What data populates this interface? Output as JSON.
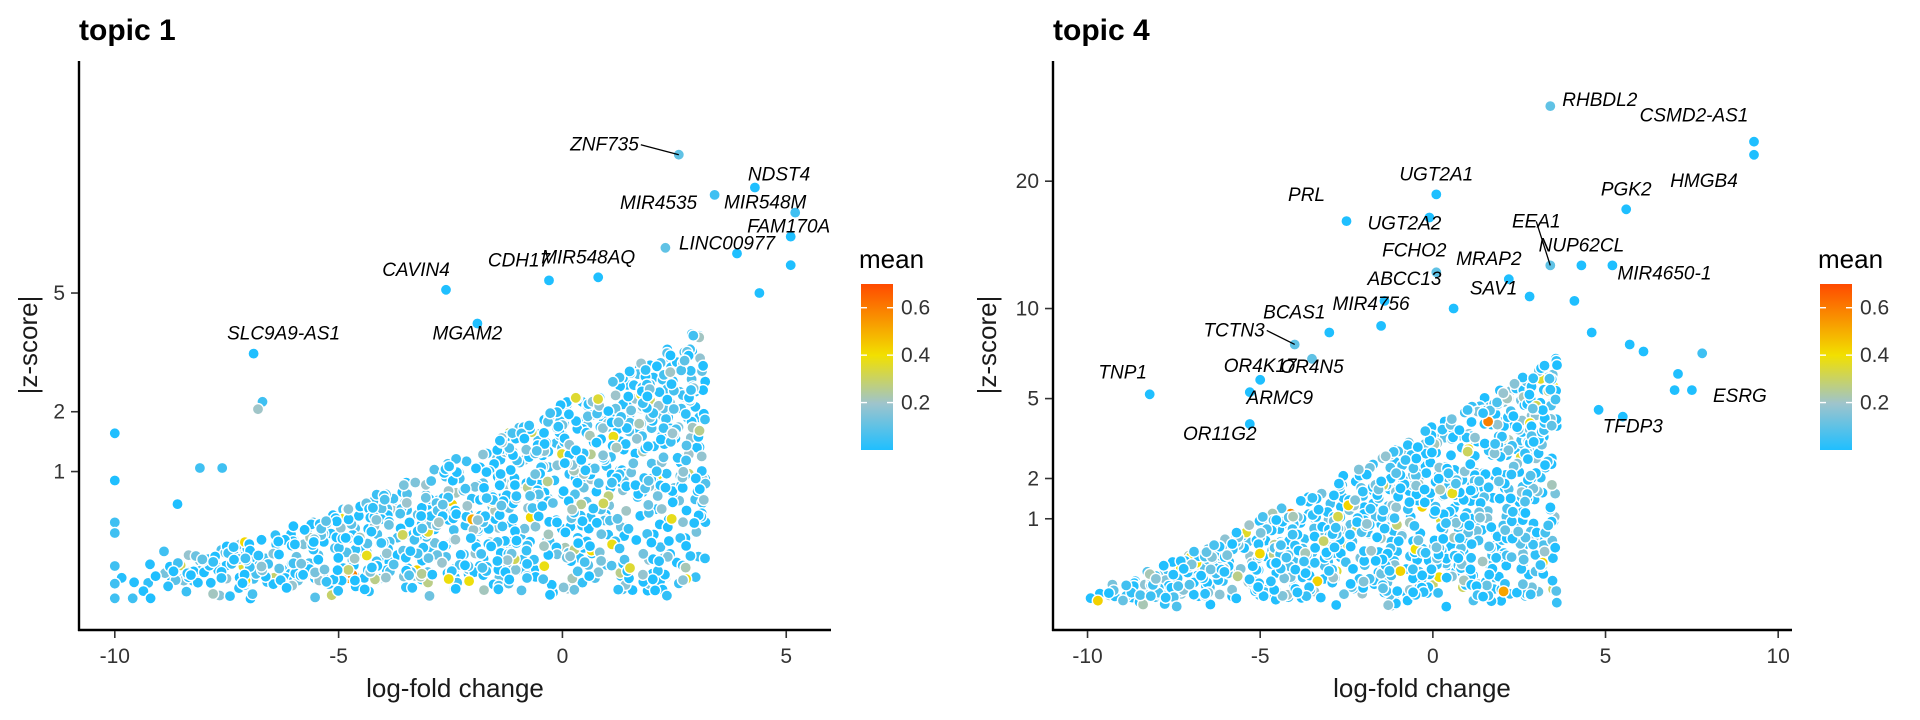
{
  "figure": {
    "colors": {
      "low": "#1fbfff",
      "mid1": "#9ec4cc",
      "mid2": "#f2e000",
      "high": "#ff4a00"
    }
  },
  "chart_data": [
    {
      "type": "scatter",
      "title": "topic 1",
      "xlabel": "log-fold change",
      "ylabel": "|z-score|",
      "y_scale": "sqrt",
      "xlim": [
        -10.8,
        6.0
      ],
      "ylim": [
        0,
        14.5
      ],
      "xticks": [
        -10,
        -5,
        0,
        5
      ],
      "xtick_labels": [
        "-10",
        "-5",
        "0",
        "5"
      ],
      "yticks": [
        1,
        2,
        5
      ],
      "ytick_labels": [
        "1",
        "2",
        "5"
      ],
      "legend": {
        "title": "mean",
        "ticks": [
          0.2,
          0.4,
          0.6
        ],
        "tick_labels": [
          "0.2",
          "0.4",
          "0.6"
        ],
        "range": [
          0,
          0.7
        ],
        "placement": "right"
      },
      "cloud": {
        "n": 1150,
        "seed": 11,
        "x_min": -10,
        "x_max": 3.2,
        "floor": 0.06,
        "slope_lo": 0.03,
        "slope_hi": 0.12,
        "hi_exp": 2.6,
        "mean_mode": "low"
      },
      "labeled_genes": [
        {
          "label": "ZNF735",
          "x": 2.6,
          "y": 10.2,
          "mean": 0.1
        },
        {
          "label": "NDST4",
          "x": 4.3,
          "y": 8.8,
          "mean": 0.0
        },
        {
          "label": "MIR4535",
          "x": 3.4,
          "y": 8.5,
          "mean": 0.05
        },
        {
          "label": "MIR548M",
          "x": 5.2,
          "y": 7.8,
          "mean": 0.05
        },
        {
          "label": "LINC00977",
          "x": 3.9,
          "y": 6.3,
          "mean": 0.0
        },
        {
          "label": "FAM170A",
          "x": 5.1,
          "y": 6.9,
          "mean": 0.0
        },
        {
          "label": "MIR548AQ",
          "x": 0.8,
          "y": 5.5,
          "mean": 0.0
        },
        {
          "label": "CDH17",
          "x": -0.3,
          "y": 5.4,
          "mean": 0.0
        },
        {
          "label": "CAVIN4",
          "x": -2.6,
          "y": 5.1,
          "mean": 0.0
        },
        {
          "label": "MGAM2",
          "x": -1.9,
          "y": 4.1,
          "mean": 0.0
        },
        {
          "label": "SLC9A9-AS1",
          "x": -6.9,
          "y": 3.3,
          "mean": 0.0
        }
      ],
      "extra_points": [
        {
          "x": -10,
          "y": 1.6,
          "mean": 0.0
        },
        {
          "x": -10,
          "y": 0.88,
          "mean": 0.0
        },
        {
          "x": -10,
          "y": 0.42,
          "mean": 0.05
        },
        {
          "x": -10,
          "y": 0.33,
          "mean": 0.05
        },
        {
          "x": -10,
          "y": 0.12,
          "mean": 0.05
        },
        {
          "x": -10,
          "y": 0.05,
          "mean": 0.05
        },
        {
          "x": -10,
          "y": 0.015,
          "mean": 0.05
        },
        {
          "x": -9.6,
          "y": 0.015,
          "mean": 0.05
        },
        {
          "x": -9.2,
          "y": 0.015,
          "mean": 0.0
        },
        {
          "x": -6.7,
          "y": 2.2,
          "mean": 0.05
        },
        {
          "x": -6.8,
          "y": 2.05,
          "mean": 0.2
        },
        {
          "x": -8.1,
          "y": 1.05,
          "mean": 0.05
        },
        {
          "x": -7.6,
          "y": 1.05,
          "mean": 0.05
        },
        {
          "x": -8.6,
          "y": 0.6,
          "mean": 0.0
        },
        {
          "x": -8.9,
          "y": 0.2,
          "mean": 0.05
        },
        {
          "x": -8.3,
          "y": 0.08,
          "mean": 0.0
        },
        {
          "x": 5.1,
          "y": 5.9,
          "mean": 0.0
        },
        {
          "x": 4.4,
          "y": 5.0,
          "mean": 0.0
        },
        {
          "x": 2.3,
          "y": 6.5,
          "mean": 0.1
        }
      ]
    },
    {
      "type": "scatter",
      "title": "topic 4",
      "xlabel": "log-fold change",
      "ylabel": "|z-score|",
      "y_scale": "sqrt",
      "xlim": [
        -11.0,
        10.4
      ],
      "ylim": [
        0,
        32
      ],
      "xticks": [
        -10,
        -5,
        0,
        5,
        10
      ],
      "xtick_labels": [
        "-10",
        "-5",
        "0",
        "5",
        "10"
      ],
      "yticks": [
        1,
        2,
        5,
        10,
        20
      ],
      "ytick_labels": [
        "1",
        "2",
        "5",
        "10",
        "20"
      ],
      "legend": {
        "title": "mean",
        "ticks": [
          0.2,
          0.4,
          0.6
        ],
        "tick_labels": [
          "0.2",
          "0.4",
          "0.6"
        ],
        "range": [
          0,
          0.7
        ],
        "placement": "right"
      },
      "cloud": {
        "n": 1050,
        "seed": 23,
        "x_min": -10,
        "x_max": 3.6,
        "floor": 0.04,
        "slope_lo": 0.04,
        "slope_hi": 0.22,
        "hi_exp": 2.2,
        "mean_mode": "low"
      },
      "labeled_genes": [
        {
          "label": "RHBDL2",
          "x": 3.4,
          "y": 27.5,
          "mean": 0.1
        },
        {
          "label": "CSMD2-AS1",
          "x": 9.3,
          "y": 23.8,
          "mean": 0.0
        },
        {
          "label": "HMGB4",
          "x": 9.3,
          "y": 22.5,
          "mean": 0.0
        },
        {
          "label": "UGT2A1",
          "x": 0.1,
          "y": 18.8,
          "mean": 0.0
        },
        {
          "label": "PGK2",
          "x": 5.6,
          "y": 17.5,
          "mean": 0.0
        },
        {
          "label": "PRL",
          "x": -2.5,
          "y": 16.5,
          "mean": 0.0
        },
        {
          "label": "UGT2A2",
          "x": -0.1,
          "y": 16.8,
          "mean": 0.0
        },
        {
          "label": "EEA1",
          "x": 3.4,
          "y": 13.0,
          "mean": 0.1
        },
        {
          "label": "NUP62CL",
          "x": 4.3,
          "y": 13.0,
          "mean": 0.0
        },
        {
          "label": "FCHO2",
          "x": 0.1,
          "y": 12.5,
          "mean": 0.1
        },
        {
          "label": "MRAP2",
          "x": 2.2,
          "y": 12.0,
          "mean": 0.0
        },
        {
          "label": "MIR4650-1",
          "x": 5.2,
          "y": 13.0,
          "mean": 0.0
        },
        {
          "label": "ABCC13",
          "x": -1.4,
          "y": 10.5,
          "mean": 0.0
        },
        {
          "label": "SAV1",
          "x": 0.6,
          "y": 10.0,
          "mean": 0.0
        },
        {
          "label": "BCAS1",
          "x": -3.0,
          "y": 8.5,
          "mean": 0.0
        },
        {
          "label": "TCTN3",
          "x": -4.0,
          "y": 7.8,
          "mean": 0.1
        },
        {
          "label": "MIR4756",
          "x": -1.5,
          "y": 8.9,
          "mean": 0.0
        },
        {
          "label": "OR4N5",
          "x": -3.5,
          "y": 7.0,
          "mean": 0.1
        },
        {
          "label": "OR4K17",
          "x": -5.0,
          "y": 5.9,
          "mean": 0.0
        },
        {
          "label": "TNP1",
          "x": -8.2,
          "y": 5.2,
          "mean": 0.0
        },
        {
          "label": "ARMC9",
          "x": -5.3,
          "y": 5.3,
          "mean": 0.0
        },
        {
          "label": "OR11G2",
          "x": -5.3,
          "y": 3.9,
          "mean": 0.0
        },
        {
          "label": "ESRG",
          "x": 7.5,
          "y": 5.4,
          "mean": 0.0
        },
        {
          "label": "TFDP3",
          "x": 5.5,
          "y": 4.2,
          "mean": 0.0
        }
      ],
      "extra_points": [
        {
          "x": 7.8,
          "y": 7.3,
          "mean": 0.05
        },
        {
          "x": 7.1,
          "y": 6.2,
          "mean": 0.0
        },
        {
          "x": 7.0,
          "y": 5.4,
          "mean": 0.0
        },
        {
          "x": 5.7,
          "y": 7.8,
          "mean": 0.0
        },
        {
          "x": 6.1,
          "y": 7.4,
          "mean": 0.0
        },
        {
          "x": 4.6,
          "y": 8.5,
          "mean": 0.0
        },
        {
          "x": 4.8,
          "y": 4.5,
          "mean": 0.0
        },
        {
          "x": 4.1,
          "y": 10.5,
          "mean": 0.0
        },
        {
          "x": 2.8,
          "y": 10.8,
          "mean": 0.0
        }
      ]
    }
  ]
}
